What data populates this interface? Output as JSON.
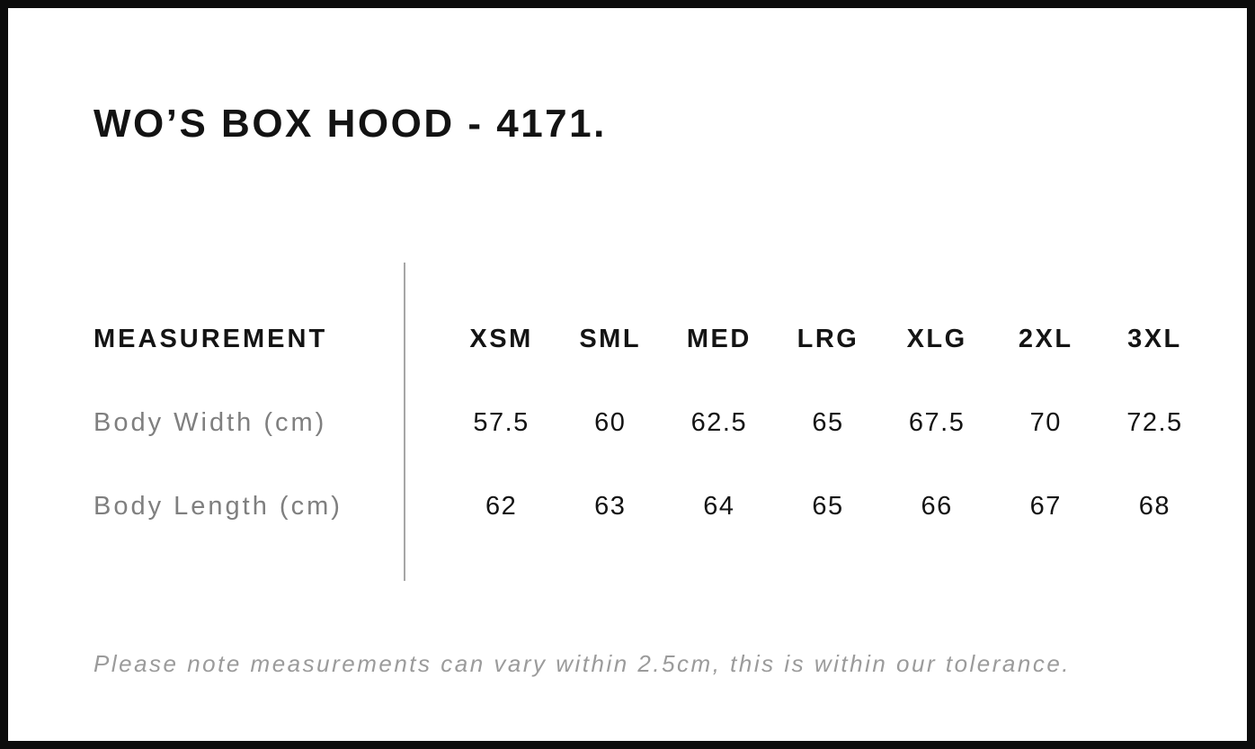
{
  "header": {
    "title": "WO’S BOX HOOD - 4171."
  },
  "size_chart": {
    "measurement_label": "MEASUREMENT",
    "sizes": [
      "XSM",
      "SML",
      "MED",
      "LRG",
      "XLG",
      "2XL",
      "3XL"
    ],
    "rows": [
      {
        "label": "Body Width (cm)",
        "values": [
          "57.5",
          "60",
          "62.5",
          "65",
          "67.5",
          "70",
          "72.5"
        ]
      },
      {
        "label": "Body Length (cm)",
        "values": [
          "62",
          "63",
          "64",
          "65",
          "66",
          "67",
          "68"
        ]
      }
    ]
  },
  "footer": {
    "note": "Please note measurements can vary within 2.5cm, this is within our tolerance."
  },
  "colors": {
    "text_primary": "#141414",
    "row_label_gray": "#7f7f7f",
    "note_gray": "#9b9b9b",
    "divider_gray": "#a6a6a6",
    "frame_border": "#0c0c0c",
    "background": "#ffffff"
  }
}
